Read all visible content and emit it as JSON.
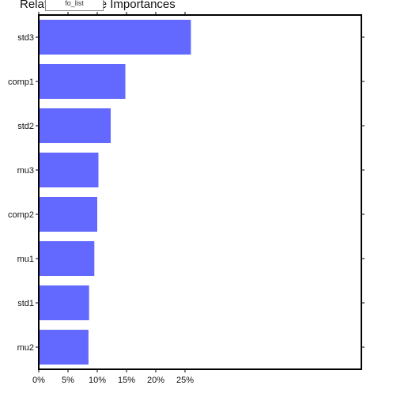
{
  "chart_data": {
    "type": "bar",
    "orientation": "horizontal",
    "title": "Relative Feature Importances",
    "categories": [
      "std3",
      "comp1",
      "std2",
      "mu3",
      "comp2",
      "mu1",
      "std1",
      "mu2"
    ],
    "values": [
      26.0,
      14.8,
      12.3,
      10.2,
      10.0,
      9.5,
      8.6,
      8.5
    ],
    "x_ticks": [
      "0%",
      "5%",
      "10%",
      "15%",
      "20%",
      "25%"
    ],
    "x_tick_values": [
      0,
      5,
      10,
      15,
      20,
      25
    ],
    "xlim": [
      0,
      27.5
    ],
    "xlabel": "",
    "ylabel": "",
    "grid": false,
    "bar_color": "#6369ff"
  },
  "overlay": {
    "label": "fo_list"
  }
}
